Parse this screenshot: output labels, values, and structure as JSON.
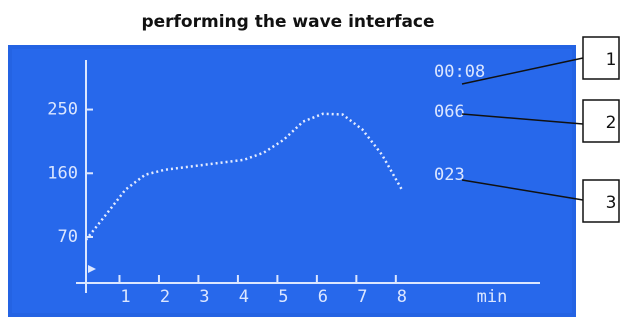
{
  "chart_data": {
    "type": "line",
    "title": "performing the wave interface",
    "x": [
      0,
      0.5,
      1,
      1.5,
      2,
      3,
      4,
      4.5,
      5,
      5.5,
      6,
      6.5,
      7,
      7.5,
      8
    ],
    "values": [
      66,
      101,
      137,
      158,
      165,
      172,
      179,
      189,
      207,
      233,
      244,
      243,
      222,
      186,
      137
    ],
    "color": "#e4ecff",
    "xlim": [
      0,
      11.5
    ],
    "xticks": [
      1,
      2,
      3,
      4,
      5,
      6,
      7,
      8
    ],
    "ylim": [
      5,
      320
    ],
    "yticks": [
      70,
      160,
      250
    ],
    "x_label": "min",
    "readouts": [
      "00:08",
      "066",
      "023"
    ],
    "callouts": [
      "1",
      "2",
      "3"
    ]
  }
}
